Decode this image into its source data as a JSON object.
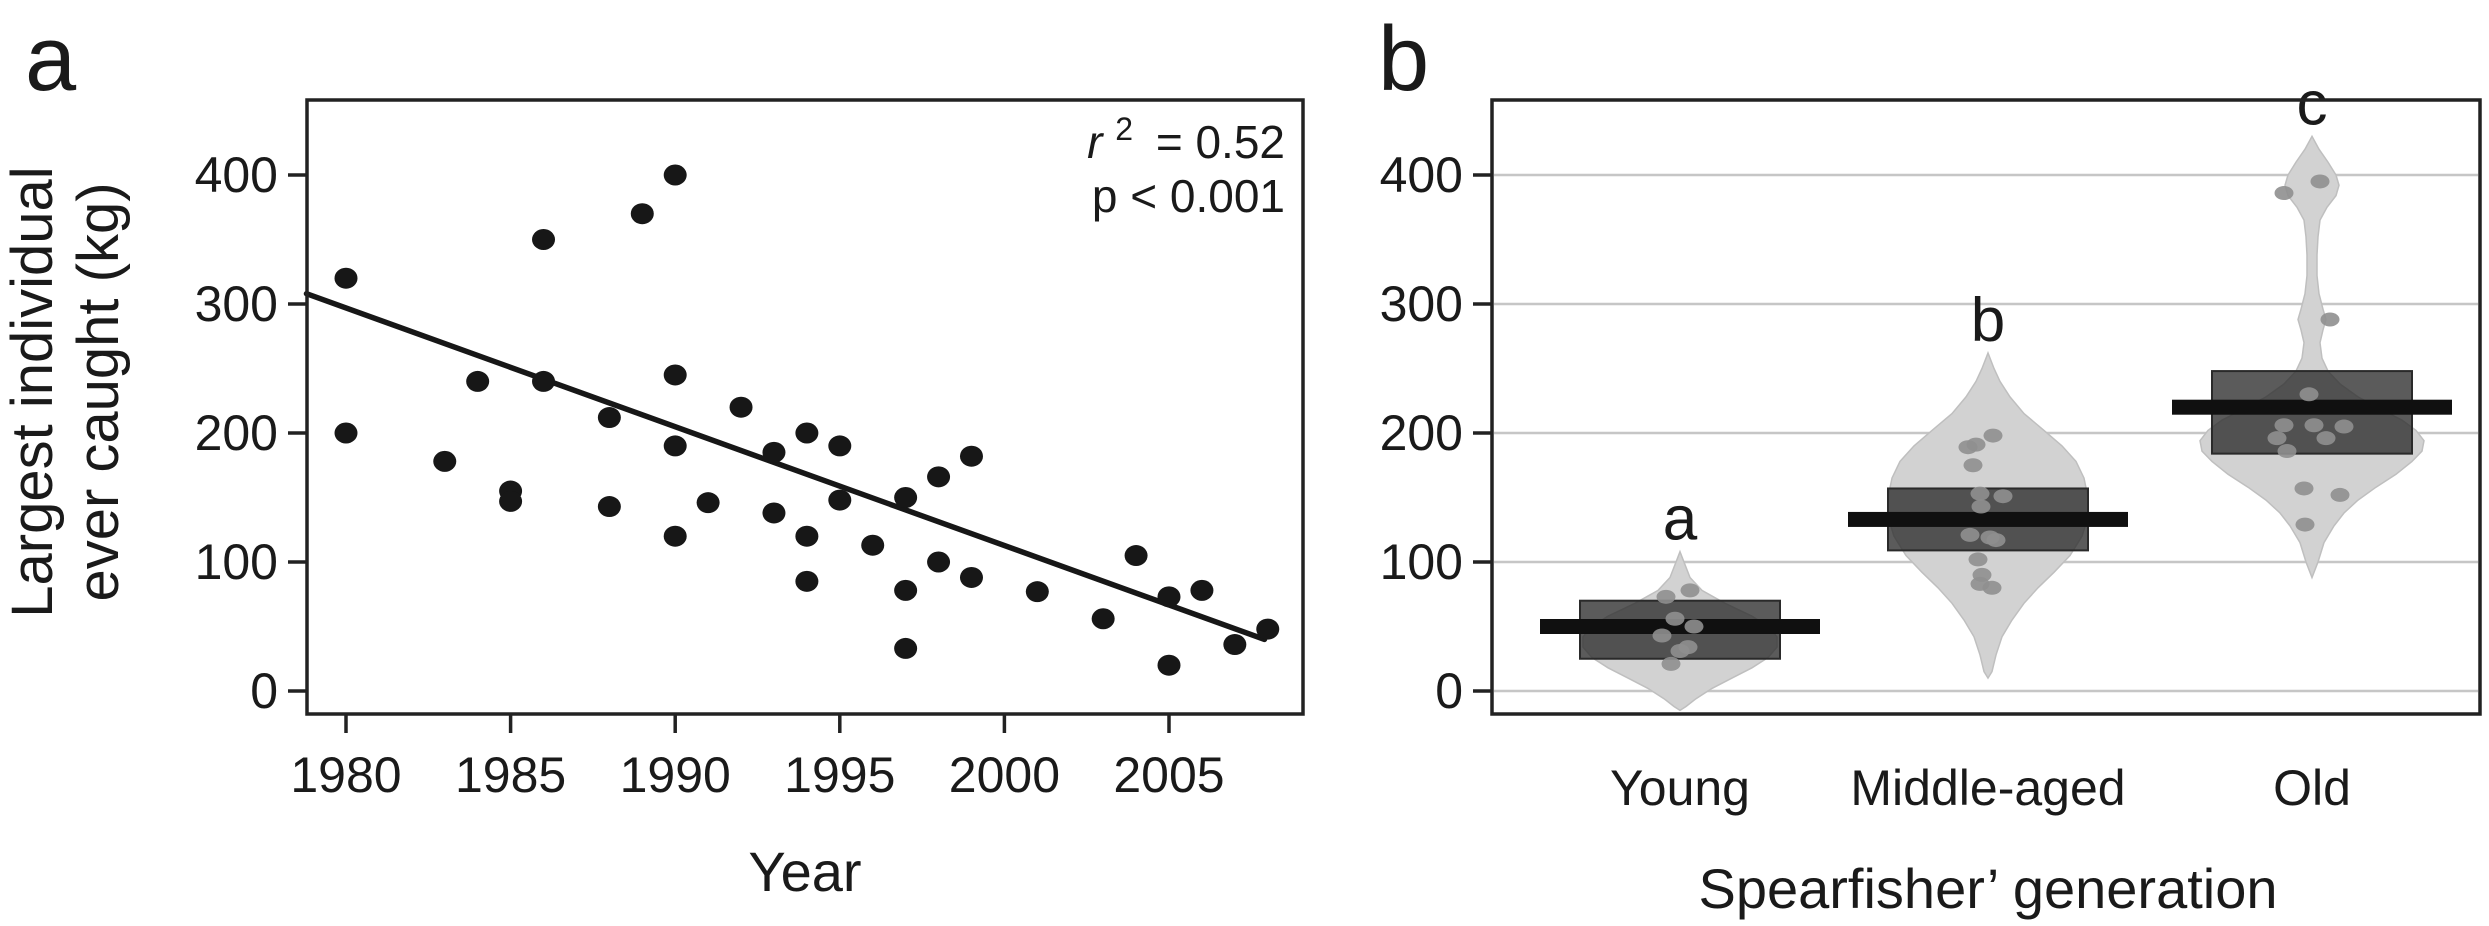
{
  "figure": {
    "panel_a": {
      "label": "a",
      "ylabel_line1": "Largest individual",
      "ylabel_line2": "ever caught (kg)",
      "xlabel": "Year",
      "annotation": {
        "r_base": "r",
        "r_sup": "2",
        "r_eq": "= 0.52",
        "p": "p < 0.001"
      }
    },
    "panel_b": {
      "label": "b",
      "xlabel": "Spearfisher’ generation"
    }
  },
  "chart_data": [
    {
      "type": "scatter",
      "panel": "a",
      "title": "",
      "xlabel": "Year",
      "ylabel": "Largest individual ever caught (kg)",
      "xlim": [
        1978.8,
        2009.0
      ],
      "ylim": [
        -18,
        458
      ],
      "xticks": [
        1980,
        1985,
        1990,
        1995,
        2000,
        2005
      ],
      "yticks": [
        0,
        100,
        200,
        300,
        400
      ],
      "grid": false,
      "legend": "none",
      "annotation_r2": 0.52,
      "annotation_p": "p < 0.001",
      "points": [
        [
          1980,
          320
        ],
        [
          1980,
          200
        ],
        [
          1983,
          178
        ],
        [
          1984,
          240
        ],
        [
          1985,
          155
        ],
        [
          1985,
          147
        ],
        [
          1986,
          350
        ],
        [
          1986,
          240
        ],
        [
          1988,
          212
        ],
        [
          1988,
          143
        ],
        [
          1989,
          370
        ],
        [
          1990,
          400
        ],
        [
          1990,
          245
        ],
        [
          1990,
          190
        ],
        [
          1990,
          120
        ],
        [
          1991,
          146
        ],
        [
          1992,
          220
        ],
        [
          1993,
          185
        ],
        [
          1993,
          138
        ],
        [
          1994,
          200
        ],
        [
          1994,
          120
        ],
        [
          1994,
          85
        ],
        [
          1995,
          190
        ],
        [
          1995,
          148
        ],
        [
          1996,
          113
        ],
        [
          1997,
          150
        ],
        [
          1997,
          78
        ],
        [
          1997,
          33
        ],
        [
          1998,
          166
        ],
        [
          1998,
          100
        ],
        [
          1999,
          182
        ],
        [
          1999,
          88
        ],
        [
          2001,
          77
        ],
        [
          2003,
          56
        ],
        [
          2004,
          105
        ],
        [
          2005,
          73
        ],
        [
          2005,
          20
        ],
        [
          2006,
          78
        ],
        [
          2007,
          36
        ],
        [
          2008,
          48
        ]
      ],
      "trendline": {
        "x1": 1978.8,
        "y1": 308,
        "x2": 2007.9,
        "y2": 40
      }
    },
    {
      "type": "violin",
      "panel": "b",
      "xlabel": "Spearfisher’ generation",
      "categories": [
        "Young",
        "Middle-aged",
        "Old"
      ],
      "sig_letters": [
        "a",
        "b",
        "c"
      ],
      "yticks": [
        0,
        100,
        200,
        300,
        400
      ],
      "ylim": [
        -18,
        458
      ],
      "grid": true,
      "groups": [
        {
          "category": "Young",
          "letter": "a",
          "median": 50,
          "box_low": 25,
          "box_high": 70,
          "violin_profile": [
            [
              108,
              0
            ],
            [
              98,
              5
            ],
            [
              88,
              10
            ],
            [
              78,
              22
            ],
            [
              68,
              45
            ],
            [
              58,
              72
            ],
            [
              50,
              88
            ],
            [
              42,
              97
            ],
            [
              34,
              97
            ],
            [
              26,
              88
            ],
            [
              18,
              72
            ],
            [
              10,
              52
            ],
            [
              2,
              32
            ],
            [
              -6,
              16
            ],
            [
              -12,
              6
            ],
            [
              -15,
              0
            ]
          ],
          "jitter": [
            [
              10,
              78
            ],
            [
              -14,
              73
            ],
            [
              -5,
              56
            ],
            [
              14,
              50
            ],
            [
              -18,
              43
            ],
            [
              8,
              34
            ],
            [
              0,
              31
            ],
            [
              -9,
              21
            ]
          ]
        },
        {
          "category": "Middle-aged",
          "letter": "b",
          "median": 133,
          "box_low": 109,
          "box_high": 157,
          "violin_profile": [
            [
              262,
              0
            ],
            [
              250,
              6
            ],
            [
              240,
              12
            ],
            [
              228,
              22
            ],
            [
              215,
              36
            ],
            [
              202,
              56
            ],
            [
              190,
              74
            ],
            [
              178,
              88
            ],
            [
              165,
              96
            ],
            [
              150,
              100
            ],
            [
              135,
              100
            ],
            [
              120,
              94
            ],
            [
              105,
              82
            ],
            [
              92,
              66
            ],
            [
              80,
              50
            ],
            [
              68,
              36
            ],
            [
              55,
              24
            ],
            [
              42,
              14
            ],
            [
              28,
              8
            ],
            [
              15,
              4
            ],
            [
              10,
              0
            ]
          ],
          "jitter": [
            [
              5,
              198
            ],
            [
              -12,
              191
            ],
            [
              -20,
              189
            ],
            [
              -15,
              175
            ],
            [
              -8,
              153
            ],
            [
              15,
              151
            ],
            [
              -7,
              143
            ],
            [
              -18,
              121
            ],
            [
              2,
              119
            ],
            [
              8,
              117
            ],
            [
              -10,
              102
            ],
            [
              -6,
              90
            ],
            [
              -8,
              83
            ],
            [
              4,
              80
            ]
          ]
        },
        {
          "category": "Old",
          "letter": "c",
          "median": 220,
          "box_low": 184,
          "box_high": 248,
          "violin_profile": [
            [
              430,
              0
            ],
            [
              420,
              7
            ],
            [
              410,
              16
            ],
            [
              400,
              24
            ],
            [
              392,
              27
            ],
            [
              384,
              24
            ],
            [
              375,
              15
            ],
            [
              365,
              8
            ],
            [
              352,
              6
            ],
            [
              338,
              5
            ],
            [
              322,
              5
            ],
            [
              308,
              7
            ],
            [
              296,
              11
            ],
            [
              288,
              14
            ],
            [
              280,
              11
            ],
            [
              270,
              8
            ],
            [
              258,
              10
            ],
            [
              248,
              16
            ],
            [
              238,
              28
            ],
            [
              228,
              46
            ],
            [
              218,
              70
            ],
            [
              210,
              90
            ],
            [
              202,
              104
            ],
            [
              194,
              112
            ],
            [
              186,
              110
            ],
            [
              178,
              100
            ],
            [
              168,
              84
            ],
            [
              158,
              64
            ],
            [
              148,
              46
            ],
            [
              138,
              32
            ],
            [
              128,
              22
            ],
            [
              115,
              12
            ],
            [
              100,
              6
            ],
            [
              88,
              0
            ]
          ],
          "jitter": [
            [
              8,
              395
            ],
            [
              -28,
              386
            ],
            [
              18,
              288
            ],
            [
              -3,
              230
            ],
            [
              -28,
              206
            ],
            [
              2,
              206
            ],
            [
              32,
              205
            ],
            [
              -35,
              196
            ],
            [
              14,
              196
            ],
            [
              -25,
              186
            ],
            [
              -8,
              157
            ],
            [
              28,
              152
            ],
            [
              -7,
              129
            ]
          ]
        }
      ],
      "style": {
        "violin_fill": "#d2d2d2",
        "violin_stroke": "#bfbfbf",
        "box_fill": "rgba(45,45,45,0.78)",
        "box_stroke": "#2a2a2a",
        "median_color": "#101010",
        "jitter_color": "#8f8f8f",
        "gridline_color": "#c6c6c6",
        "point_color": "#171717",
        "axis_color": "#222222"
      }
    }
  ]
}
